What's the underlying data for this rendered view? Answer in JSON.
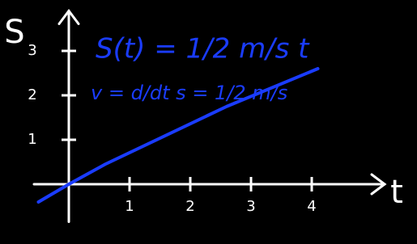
{
  "chart_data": {
    "type": "line",
    "xlabel": "t",
    "ylabel": "S",
    "annotations": [
      "S(t) = 1/2 m/s t",
      "v = d/dt s = 1/2 m/s"
    ],
    "x": [
      -0.5,
      0,
      0.6,
      2.6,
      4.1
    ],
    "series": [
      {
        "name": "S(t)",
        "color": "#1a3cff",
        "values": [
          -0.4,
          0,
          0.45,
          1.75,
          2.6
        ]
      }
    ],
    "xlim": [
      -0.6,
      5.2
    ],
    "ylim": [
      -1.1,
      3.9
    ],
    "xticks": [
      1,
      2,
      3,
      4
    ],
    "yticks": [
      1,
      2,
      3
    ],
    "axis_color": "#ffffff"
  }
}
